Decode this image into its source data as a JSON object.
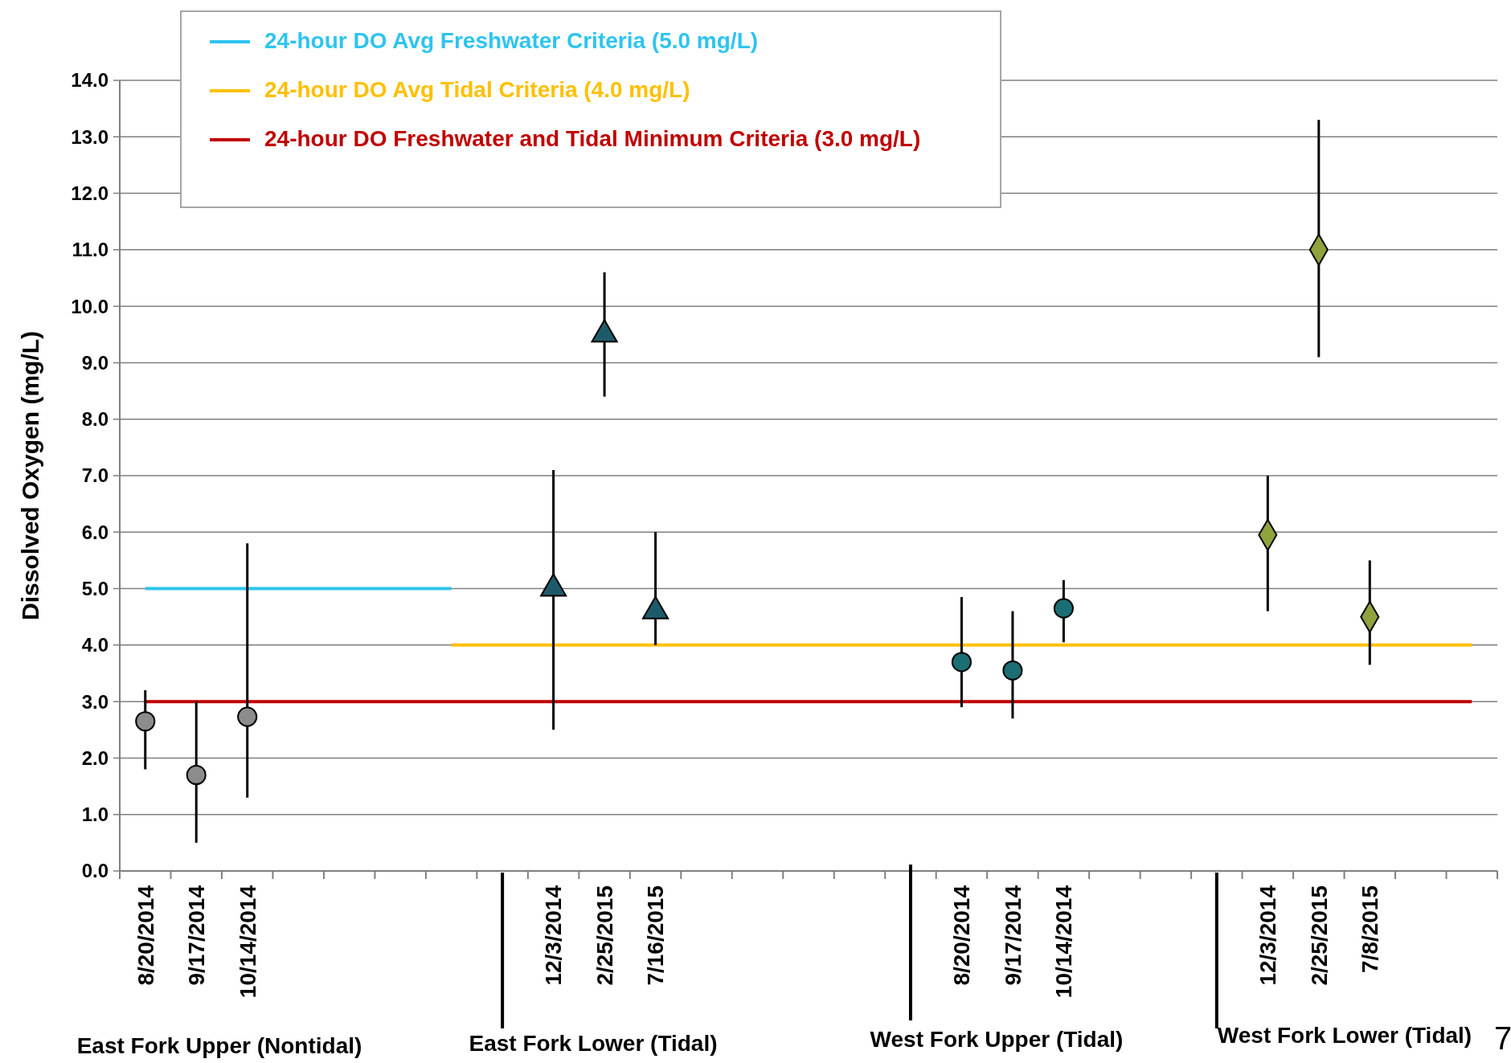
{
  "chart_data": {
    "type": "scatter",
    "ylabel": "Dissolved Oxygen (mg/L)",
    "categories": [
      "8/20/2014",
      "9/17/2014",
      "10/14/2014",
      null,
      null,
      null,
      null,
      null,
      "12/3/2014",
      "2/25/2015",
      "7/16/2015",
      null,
      null,
      null,
      null,
      null,
      "8/20/2014",
      "9/17/2014",
      "10/14/2014",
      null,
      null,
      null,
      "12/3/2014",
      "2/25/2015",
      "7/8/2015",
      null,
      null
    ],
    "ylim": [
      0,
      14
    ],
    "yticks": [
      {
        "value": 0,
        "label": "0.0"
      },
      {
        "value": 1,
        "label": "1.0"
      },
      {
        "value": 2,
        "label": "2.0"
      },
      {
        "value": 3,
        "label": "3.0"
      },
      {
        "value": 4,
        "label": "4.0"
      },
      {
        "value": 5,
        "label": "5.0"
      },
      {
        "value": 6,
        "label": "6.0"
      },
      {
        "value": 7,
        "label": "7.0"
      },
      {
        "value": 8,
        "label": "8.0"
      },
      {
        "value": 9,
        "label": "9.0"
      },
      {
        "value": 10,
        "label": "10.0"
      },
      {
        "value": 11,
        "label": "11.0"
      },
      {
        "value": 12,
        "label": "12.0"
      },
      {
        "value": 13,
        "label": "13.0"
      },
      {
        "value": 14,
        "label": "14.0"
      }
    ],
    "grid": "y",
    "legend": "top",
    "series": [
      {
        "type": "line",
        "name": "24-hour DO Avg Freshwater Criteria (5.0 mg/L)",
        "color": "#2ec4ef",
        "values": [
          5,
          5,
          5,
          5,
          5,
          5,
          5,
          null,
          null,
          null,
          null,
          null,
          null,
          null,
          null,
          null,
          null,
          null,
          null,
          null,
          null,
          null,
          null,
          null,
          null,
          null,
          null
        ]
      },
      {
        "type": "line",
        "name": "24-hour DO Avg Tidal Criteria (4.0 mg/L)",
        "color": "#ffc000",
        "values": [
          null,
          null,
          null,
          null,
          null,
          null,
          4,
          4,
          4,
          4,
          4,
          4,
          4,
          4,
          4,
          4,
          4,
          4,
          4,
          4,
          4,
          4,
          4,
          4,
          4,
          4,
          4
        ]
      },
      {
        "type": "line",
        "name": "24-hour DO Freshwater and Tidal Minimum Criteria (3.0 mg/L)",
        "color": "#c00000",
        "values": [
          3,
          3,
          3,
          3,
          3,
          3,
          3,
          3,
          3,
          3,
          3,
          3,
          3,
          3,
          3,
          3,
          3,
          3,
          3,
          3,
          3,
          3,
          3,
          3,
          3,
          3,
          3
        ]
      },
      {
        "marker": "circle",
        "color": "#8c8c8c",
        "values": [
          2.65,
          1.7,
          2.73,
          null,
          null,
          null,
          null,
          null,
          null,
          null,
          null,
          null,
          null,
          null,
          null,
          null,
          null,
          null,
          null,
          null,
          null,
          null,
          null,
          null,
          null,
          null,
          null
        ],
        "errors": [
          [
            1.8,
            3.2
          ],
          [
            0.5,
            3.0
          ],
          [
            1.3,
            5.8
          ],
          null,
          null,
          null,
          null,
          null,
          null,
          null,
          null,
          null,
          null,
          null,
          null,
          null,
          null,
          null,
          null,
          null,
          null,
          null,
          null,
          null,
          null,
          null,
          null
        ]
      },
      {
        "marker": "triangle",
        "color": "#1e5b6a",
        "values": [
          null,
          null,
          null,
          null,
          null,
          null,
          null,
          null,
          5.0,
          9.5,
          4.6,
          null,
          null,
          null,
          null,
          null,
          null,
          null,
          null,
          null,
          null,
          null,
          null,
          null,
          null,
          null,
          null
        ],
        "errors": [
          null,
          null,
          null,
          null,
          null,
          null,
          null,
          null,
          [
            2.5,
            7.1
          ],
          [
            8.4,
            10.6
          ],
          [
            4.0,
            6.0
          ],
          null,
          null,
          null,
          null,
          null,
          null,
          null,
          null,
          null,
          null,
          null,
          null,
          null,
          null,
          null,
          null
        ]
      },
      {
        "marker": "circle",
        "color": "#1a6e74",
        "values": [
          null,
          null,
          null,
          null,
          null,
          null,
          null,
          null,
          null,
          null,
          null,
          null,
          null,
          null,
          null,
          null,
          3.7,
          3.55,
          4.65,
          null,
          null,
          null,
          null,
          null,
          null,
          null,
          null
        ],
        "errors": [
          null,
          null,
          null,
          null,
          null,
          null,
          null,
          null,
          null,
          null,
          null,
          null,
          null,
          null,
          null,
          null,
          [
            2.9,
            4.85
          ],
          [
            2.7,
            4.6
          ],
          [
            4.05,
            5.15
          ],
          null,
          null,
          null,
          null,
          null,
          null,
          null,
          null
        ]
      },
      {
        "marker": "diamond",
        "color": "#8fa33c",
        "values": [
          null,
          null,
          null,
          null,
          null,
          null,
          null,
          null,
          null,
          null,
          null,
          null,
          null,
          null,
          null,
          null,
          null,
          null,
          null,
          null,
          null,
          null,
          5.95,
          11.0,
          4.5,
          null,
          null
        ],
        "errors": [
          null,
          null,
          null,
          null,
          null,
          null,
          null,
          null,
          null,
          null,
          null,
          null,
          null,
          null,
          null,
          null,
          null,
          null,
          null,
          null,
          null,
          null,
          [
            4.6,
            7.0
          ],
          [
            9.1,
            13.3
          ],
          [
            3.65,
            5.5
          ],
          null,
          null
        ]
      }
    ],
    "annotations": [
      "East Fork Upper (Nontidal)",
      "East Fork Lower (Tidal)",
      "West Fork Upper (Tidal)",
      "West Fork Lower (Tidal)",
      "7"
    ]
  }
}
